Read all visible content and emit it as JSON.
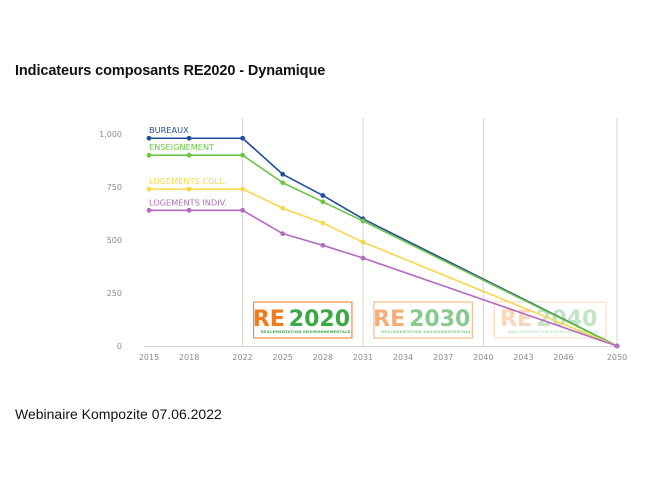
{
  "slide": {
    "title": "Indicateurs composants RE2020 - Dynamique",
    "footer": "Webinaire Kompozite 07.06.2022"
  },
  "chart_data": {
    "type": "line",
    "title": "",
    "xlabel": "",
    "ylabel": "",
    "x": [
      2015,
      2018,
      2022,
      2025,
      2028,
      2031,
      2050
    ],
    "xticks": [
      2015,
      2018,
      2022,
      2025,
      2028,
      2031,
      2034,
      2037,
      2040,
      2043,
      2046,
      2050
    ],
    "xlim": [
      2014,
      2050
    ],
    "ylim": [
      0,
      1000
    ],
    "yticks": [
      0,
      250,
      500,
      750,
      1000
    ],
    "ytick_labels": [
      "0",
      "250",
      "500",
      "750",
      "1,000"
    ],
    "grid": "vertical at 2022, 2031, 2040 and 2050",
    "legend": "labels above each series at left",
    "series": [
      {
        "name": "BUREAUX",
        "color": "#1f4e9c",
        "values": [
          980,
          980,
          980,
          810,
          710,
          600,
          0
        ]
      },
      {
        "name": "ENSEIGNEMENT",
        "color": "#6cc644",
        "values": [
          900,
          900,
          900,
          770,
          680,
          590,
          0
        ]
      },
      {
        "name": "LOGEMENTS COLL.",
        "color": "#f7d74a",
        "values": [
          740,
          740,
          740,
          650,
          580,
          490,
          0
        ]
      },
      {
        "name": "LOGEMENTS INDIV.",
        "color": "#b36cc0",
        "values": [
          640,
          640,
          640,
          530,
          475,
          415,
          0
        ]
      }
    ],
    "annotations": [
      {
        "re": "RE",
        "year": "2020",
        "subtitle": "RÉGLEMENTATION ENVIRONNEMENTALE",
        "re_color": "#f07a1e",
        "year_color": "#3aa844",
        "border_color": "#f07a1e",
        "opacity": 1.0,
        "from": 2022,
        "to": 2031
      },
      {
        "re": "RE",
        "year": "2030",
        "subtitle": "RÉGLEMENTATION ENVIRONNEMENTALE",
        "re_color": "#f07a1e",
        "year_color": "#3aa844",
        "border_color": "#f07a1e",
        "opacity": 0.6,
        "from": 2031,
        "to": 2040
      },
      {
        "re": "RE",
        "year": "2040",
        "subtitle": "RÉGLEMENTATION ENVIRONNEMENTALE",
        "re_color": "#f07a1e",
        "year_color": "#3aa844",
        "border_color": "#f07a1e",
        "opacity": 0.3,
        "from": 2040,
        "to": 2050
      }
    ]
  }
}
